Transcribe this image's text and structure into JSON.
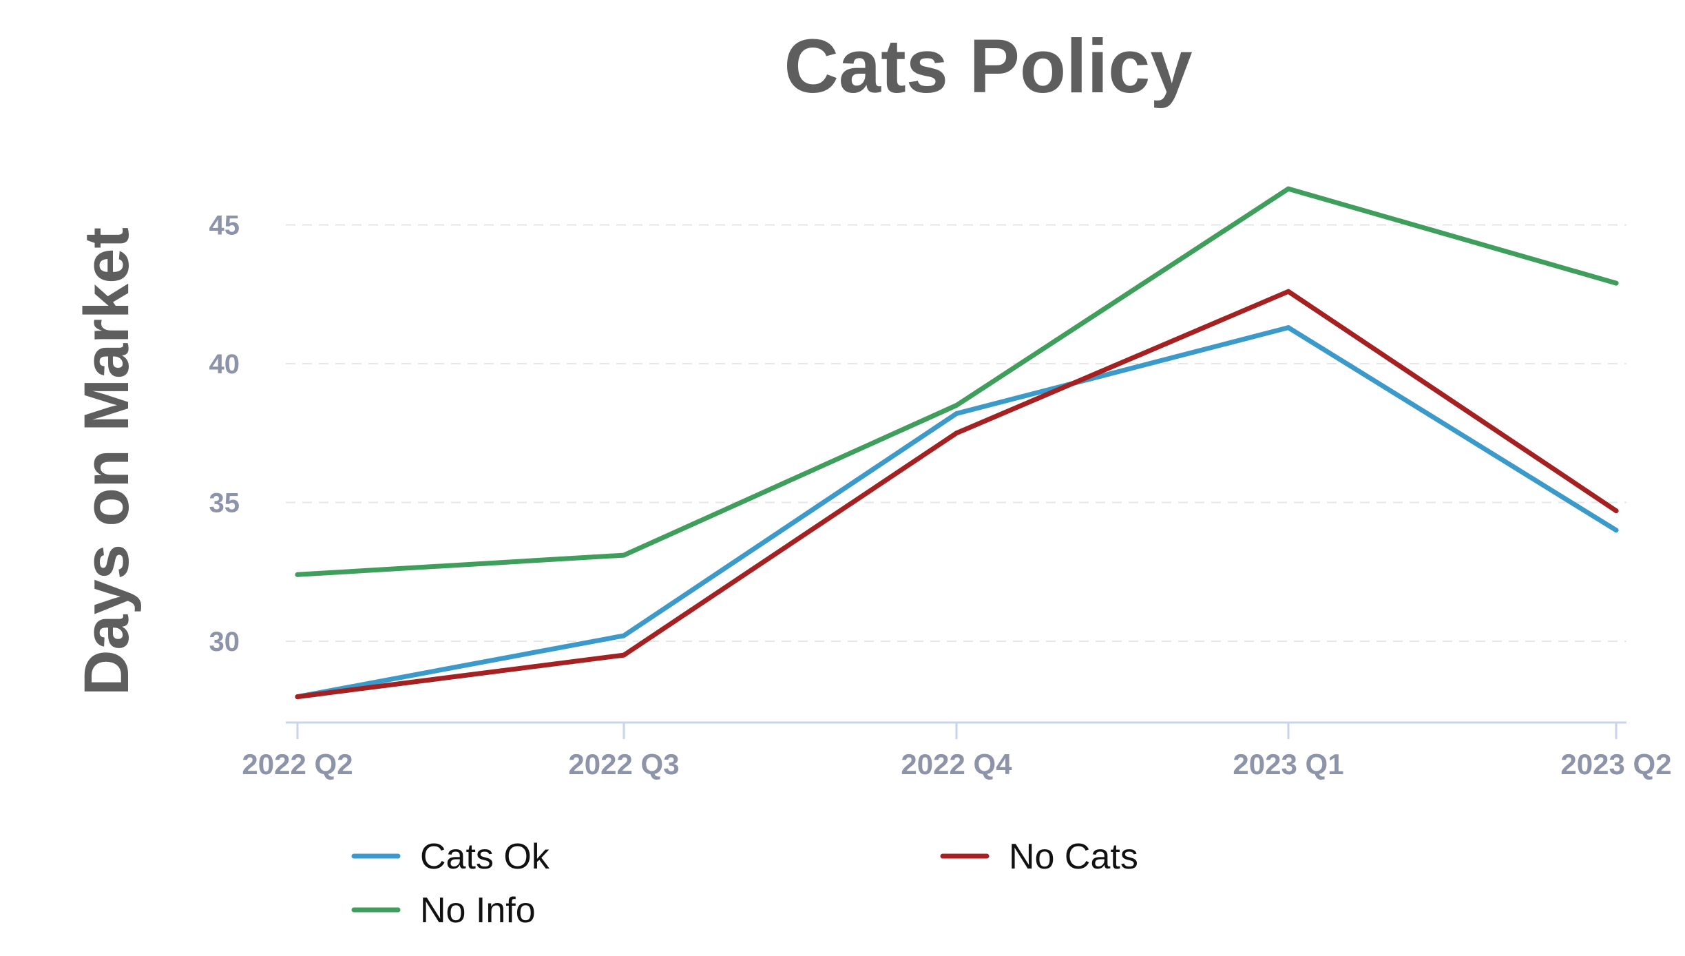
{
  "chart_data": {
    "type": "line",
    "title": "Cats Policy",
    "xlabel": "",
    "ylabel": "Days on Market",
    "categories": [
      "2022 Q2",
      "2022 Q3",
      "2022 Q4",
      "2023 Q1",
      "2023 Q2"
    ],
    "yticks": [
      30,
      35,
      40,
      45
    ],
    "ylim": [
      27,
      47
    ],
    "grid": "horizontal dashed",
    "legend_position": "bottom",
    "series": [
      {
        "name": "Cats Ok",
        "color": "#3b9ac9",
        "values": [
          28.0,
          30.2,
          38.2,
          41.3,
          34.0
        ]
      },
      {
        "name": "No Cats",
        "color": "#a52020",
        "values": [
          28.0,
          29.5,
          37.5,
          42.6,
          34.7
        ]
      },
      {
        "name": "No Info",
        "color": "#3f9e5c",
        "values": [
          32.4,
          33.1,
          38.5,
          46.3,
          42.9
        ]
      }
    ]
  }
}
